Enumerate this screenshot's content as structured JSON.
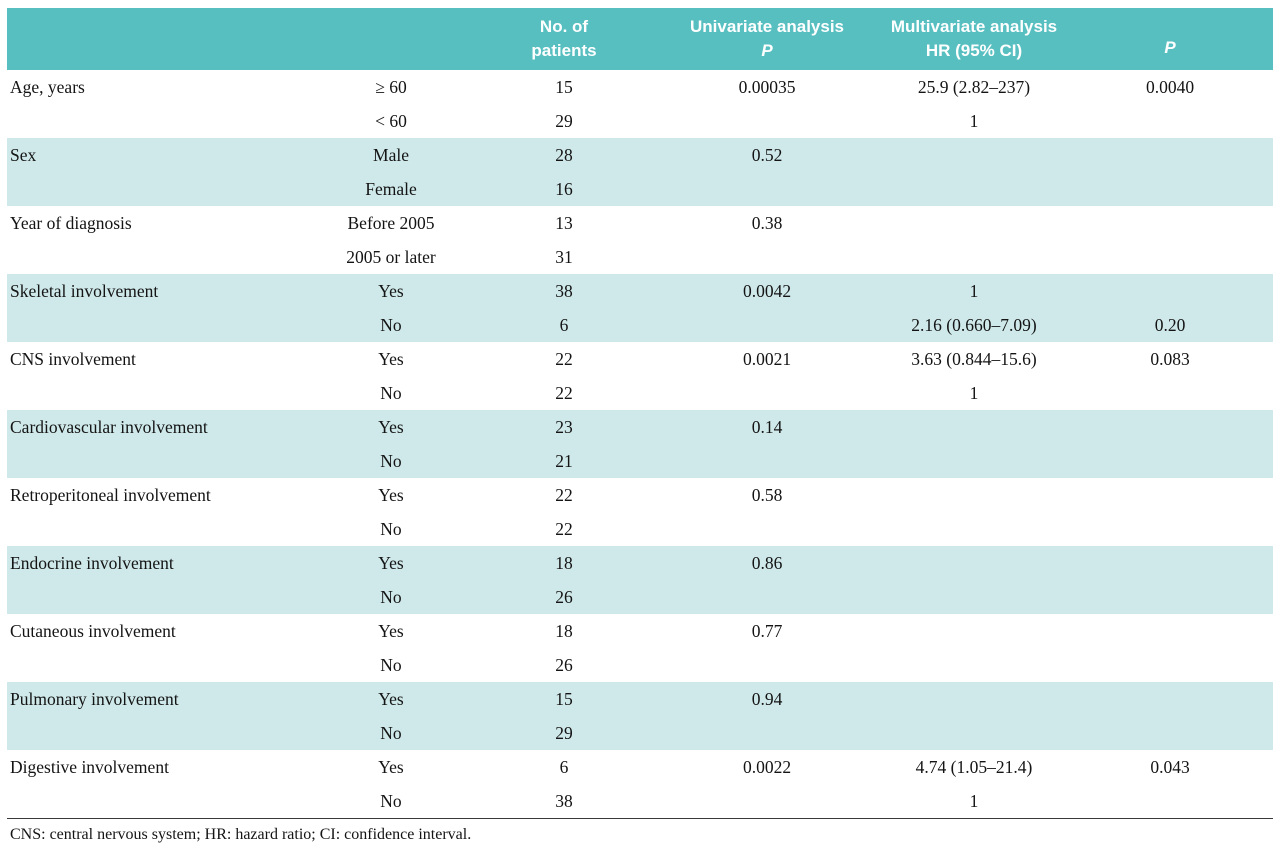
{
  "colors": {
    "header_bg": "#58bfc1",
    "row_alt_bg": "#cfe9ea",
    "text_color": "#141414",
    "rule_color": "#3a3a3a"
  },
  "table": {
    "header": {
      "variable_label": "",
      "category_label": "",
      "patients_line1": "No. of",
      "patients_line2": "patients",
      "univariate_line1": "Univariate analysis",
      "univariate_line2": "P",
      "multivariate_line1": "Multivariate analysis",
      "multivariate_line2": "HR (95% CI)",
      "p_label": "P"
    },
    "groups": [
      {
        "variable": "Age, years",
        "rows": [
          {
            "category": "≥ 60",
            "n": "15",
            "uni_p": "0.00035",
            "hr": "25.9 (2.82–237)",
            "multi_p": "0.0040"
          },
          {
            "category": "< 60",
            "n": "29",
            "uni_p": "",
            "hr": "1",
            "multi_p": ""
          }
        ]
      },
      {
        "variable": "Sex",
        "rows": [
          {
            "category": "Male",
            "n": "28",
            "uni_p": "0.52",
            "hr": "",
            "multi_p": ""
          },
          {
            "category": "Female",
            "n": "16",
            "uni_p": "",
            "hr": "",
            "multi_p": ""
          }
        ]
      },
      {
        "variable": "Year of diagnosis",
        "rows": [
          {
            "category": "Before 2005",
            "n": "13",
            "uni_p": "0.38",
            "hr": "",
            "multi_p": ""
          },
          {
            "category": "2005 or later",
            "n": "31",
            "uni_p": "",
            "hr": "",
            "multi_p": ""
          }
        ]
      },
      {
        "variable": "Skeletal involvement",
        "rows": [
          {
            "category": "Yes",
            "n": "38",
            "uni_p": "0.0042",
            "hr": "1",
            "multi_p": ""
          },
          {
            "category": "No",
            "n": "6",
            "uni_p": "",
            "hr": "2.16 (0.660–7.09)",
            "multi_p": "0.20"
          }
        ]
      },
      {
        "variable": "CNS involvement",
        "rows": [
          {
            "category": "Yes",
            "n": "22",
            "uni_p": "0.0021",
            "hr": "3.63 (0.844–15.6)",
            "multi_p": "0.083"
          },
          {
            "category": "No",
            "n": "22",
            "uni_p": "",
            "hr": "1",
            "multi_p": ""
          }
        ]
      },
      {
        "variable": "Cardiovascular involvement",
        "rows": [
          {
            "category": "Yes",
            "n": "23",
            "uni_p": "0.14",
            "hr": "",
            "multi_p": ""
          },
          {
            "category": "No",
            "n": "21",
            "uni_p": "",
            "hr": "",
            "multi_p": ""
          }
        ]
      },
      {
        "variable": "Retroperitoneal involvement",
        "rows": [
          {
            "category": "Yes",
            "n": "22",
            "uni_p": "0.58",
            "hr": "",
            "multi_p": ""
          },
          {
            "category": "No",
            "n": "22",
            "uni_p": "",
            "hr": "",
            "multi_p": ""
          }
        ]
      },
      {
        "variable": "Endocrine involvement",
        "rows": [
          {
            "category": "Yes",
            "n": "18",
            "uni_p": "0.86",
            "hr": "",
            "multi_p": ""
          },
          {
            "category": "No",
            "n": "26",
            "uni_p": "",
            "hr": "",
            "multi_p": ""
          }
        ]
      },
      {
        "variable": "Cutaneous involvement",
        "rows": [
          {
            "category": "Yes",
            "n": "18",
            "uni_p": "0.77",
            "hr": "",
            "multi_p": ""
          },
          {
            "category": "No",
            "n": "26",
            "uni_p": "",
            "hr": "",
            "multi_p": ""
          }
        ]
      },
      {
        "variable": "Pulmonary involvement",
        "rows": [
          {
            "category": "Yes",
            "n": "15",
            "uni_p": "0.94",
            "hr": "",
            "multi_p": ""
          },
          {
            "category": "No",
            "n": "29",
            "uni_p": "",
            "hr": "",
            "multi_p": ""
          }
        ]
      },
      {
        "variable": "Digestive involvement",
        "rows": [
          {
            "category": "Yes",
            "n": "6",
            "uni_p": "0.0022",
            "hr": "4.74 (1.05–21.4)",
            "multi_p": "0.043"
          },
          {
            "category": "No",
            "n": "38",
            "uni_p": "",
            "hr": "1",
            "multi_p": ""
          }
        ]
      }
    ],
    "footnote": "CNS: central nervous system; HR: hazard ratio; CI: confidence interval."
  }
}
